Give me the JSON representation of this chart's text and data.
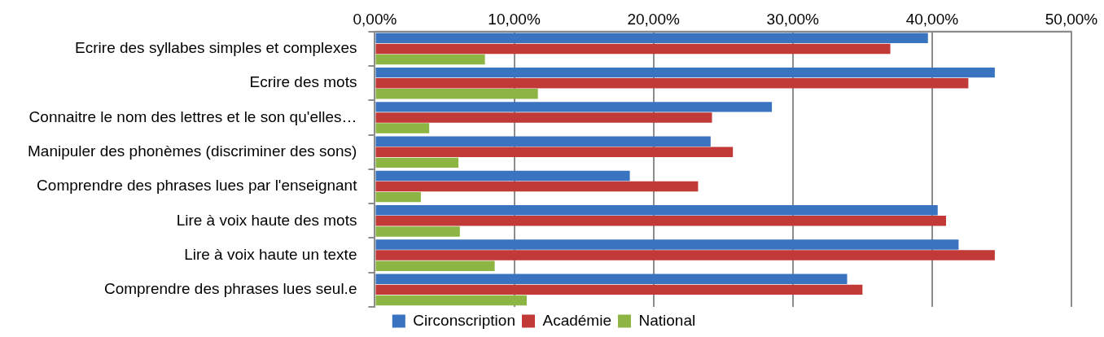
{
  "chart_data": {
    "type": "bar",
    "orientation": "horizontal",
    "categories": [
      "Ecrire des syllabes simples et complexes",
      "Ecrire des mots",
      "Connaitre le nom des lettres et le son qu'elles…",
      "Manipuler des phonèmes (discriminer des sons)",
      "Comprendre des phrases lues par l'enseignant",
      "Lire à voix haute des mots",
      "Lire à voix haute un texte",
      "Comprendre des phrases lues seul.e"
    ],
    "series": [
      {
        "name": "Circonscription",
        "color": "#3a73c0",
        "values": [
          39.7,
          44.5,
          28.5,
          24.1,
          18.3,
          40.4,
          41.9,
          33.9
        ]
      },
      {
        "name": "Académie",
        "color": "#c23a37",
        "values": [
          37.0,
          42.6,
          24.2,
          25.7,
          23.2,
          41.0,
          44.5,
          35.0
        ]
      },
      {
        "name": "National",
        "color": "#8db543",
        "values": [
          7.9,
          11.7,
          3.9,
          6.0,
          3.3,
          6.1,
          8.6,
          10.9
        ]
      }
    ],
    "xlim": [
      0,
      50
    ],
    "xticks": [
      {
        "value": 0,
        "label": "0,00%"
      },
      {
        "value": 10,
        "label": "10,00%"
      },
      {
        "value": 20,
        "label": "20,00%"
      },
      {
        "value": 30,
        "label": "30,00%"
      },
      {
        "value": 40,
        "label": "40,00%"
      },
      {
        "value": 50,
        "label": "50,00%"
      }
    ],
    "grid": "x",
    "legend": "bottom"
  }
}
